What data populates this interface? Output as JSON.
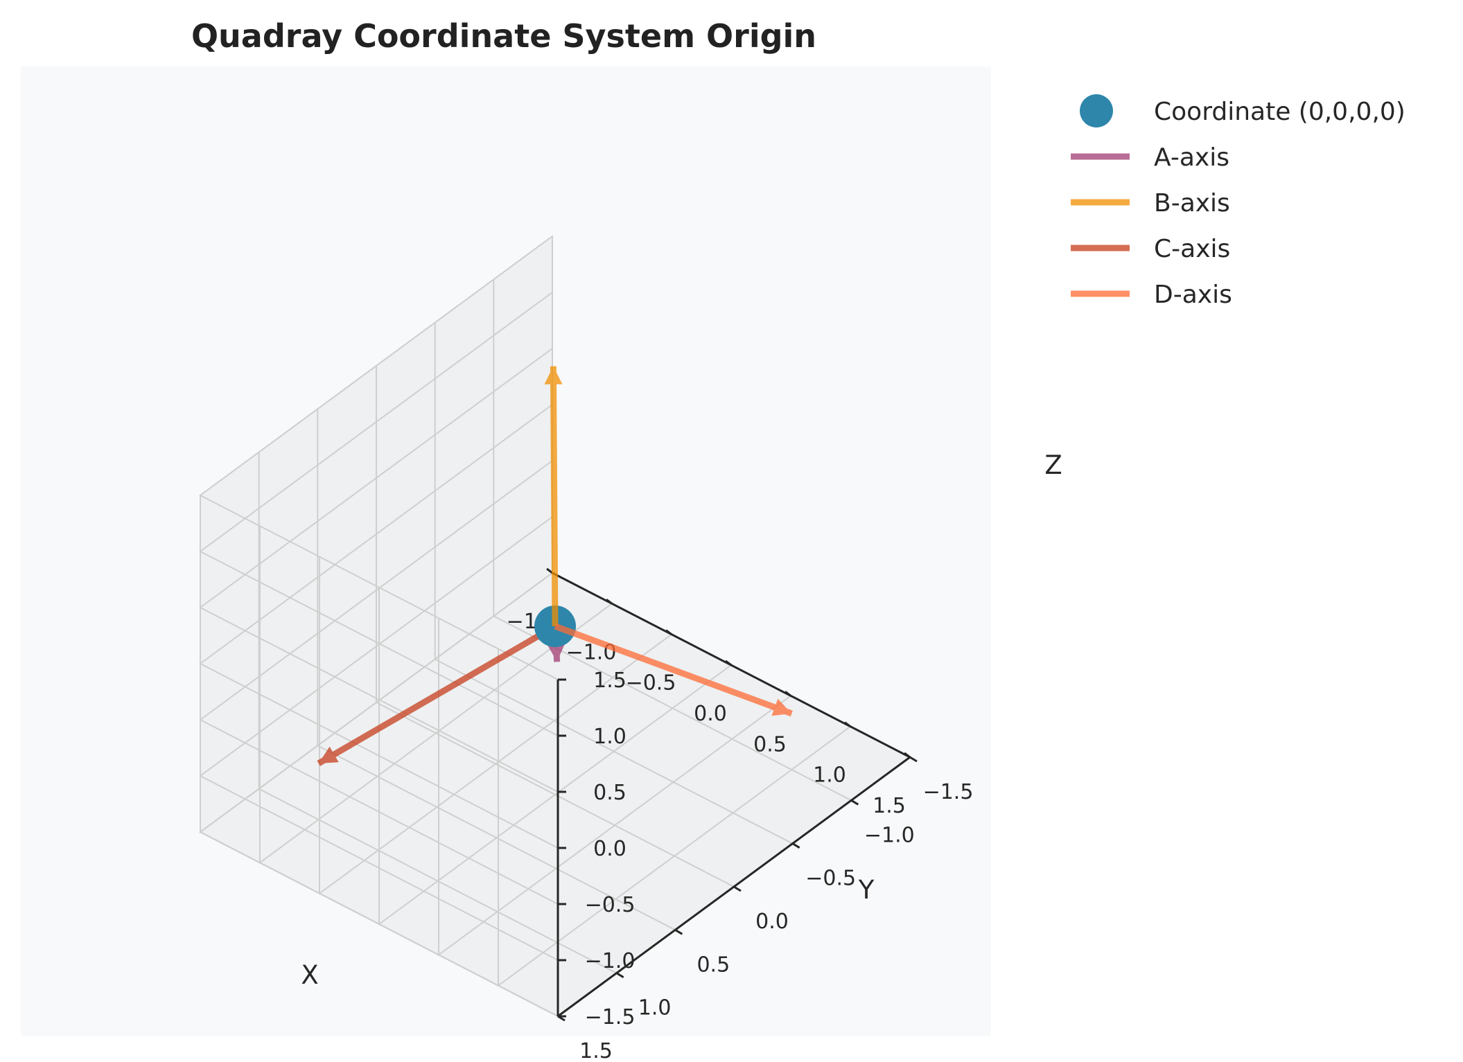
{
  "chart_data": {
    "type": "3d-line",
    "title": "Quadray Coordinate System Origin",
    "xlabel": "X",
    "ylabel": "Y",
    "zlabel": "Z",
    "xlim": [
      -1.5,
      1.5
    ],
    "ylim": [
      -1.5,
      1.5
    ],
    "zlim": [
      -1.5,
      1.5
    ],
    "ticks": [
      -1.5,
      -1.0,
      -0.5,
      0.0,
      0.5,
      1.0,
      1.5
    ],
    "tick_labels": [
      "−1.5",
      "−1.0",
      "−0.5",
      "0.0",
      "0.5",
      "1.0",
      "1.5"
    ],
    "grid": true,
    "legend_position": "outside top-right",
    "point": {
      "name": "Coordinate (0,0,0,0)",
      "x": 0,
      "y": 0,
      "z": 0,
      "color": "#2e86ab"
    },
    "series": [
      {
        "name": "A-axis",
        "color": "#a23b72",
        "from": [
          0,
          0,
          0
        ],
        "to": [
          1,
          1,
          1
        ]
      },
      {
        "name": "B-axis",
        "color": "#f18f01",
        "from": [
          0,
          0,
          0
        ],
        "to": [
          -1,
          -1,
          1
        ]
      },
      {
        "name": "C-axis",
        "color": "#c73e1d",
        "from": [
          0,
          0,
          0
        ],
        "to": [
          -1,
          1,
          -1
        ]
      },
      {
        "name": "D-axis",
        "color": "#ff6b35",
        "from": [
          0,
          0,
          0
        ],
        "to": [
          1,
          -1,
          -1
        ]
      }
    ]
  }
}
